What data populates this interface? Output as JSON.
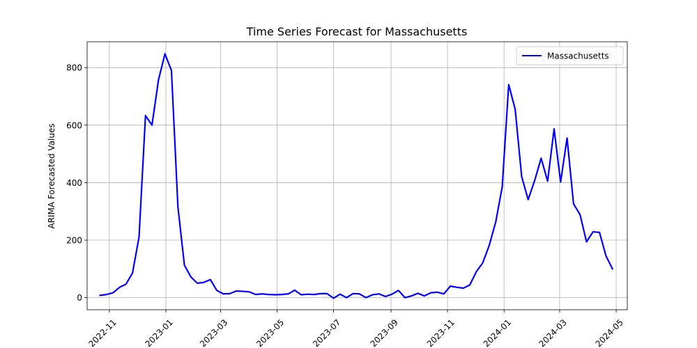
{
  "chart_data": {
    "type": "line",
    "title": "Time Series Forecast for Massachusetts",
    "xlabel": "",
    "ylabel": "ARIMA Forecasted Values",
    "xlim": [
      "2022-10-08",
      "2024-05-13"
    ],
    "ylim": [
      -42,
      890
    ],
    "x_ticks": [
      "2022-11-01",
      "2023-01-01",
      "2023-03-01",
      "2023-05-01",
      "2023-07-01",
      "2023-09-01",
      "2023-11-01",
      "2024-01-01",
      "2024-03-01",
      "2024-05-01"
    ],
    "x_tick_labels": [
      "2022-11",
      "2023-01",
      "2023-03",
      "2023-05",
      "2023-07",
      "2023-09",
      "2023-11",
      "2024-01",
      "2024-03",
      "2024-05"
    ],
    "y_ticks": [
      0,
      200,
      400,
      600,
      800
    ],
    "y_tick_labels": [
      "0",
      "200",
      "400",
      "600",
      "800"
    ],
    "grid": true,
    "legend_position": "upper right",
    "series": [
      {
        "name": "Massachusetts",
        "color": "#0000ff",
        "x": [
          "2022-10-22",
          "2022-10-29",
          "2022-11-05",
          "2022-11-12",
          "2022-11-19",
          "2022-11-26",
          "2022-12-03",
          "2022-12-10",
          "2022-12-17",
          "2022-12-24",
          "2022-12-31",
          "2023-01-07",
          "2023-01-14",
          "2023-01-21",
          "2023-01-28",
          "2023-02-04",
          "2023-02-11",
          "2023-02-18",
          "2023-02-25",
          "2023-03-04",
          "2023-03-11",
          "2023-03-18",
          "2023-03-25",
          "2023-04-01",
          "2023-04-08",
          "2023-04-15",
          "2023-04-22",
          "2023-04-29",
          "2023-05-06",
          "2023-05-13",
          "2023-05-20",
          "2023-05-27",
          "2023-06-03",
          "2023-06-10",
          "2023-06-17",
          "2023-06-24",
          "2023-07-01",
          "2023-07-08",
          "2023-07-15",
          "2023-07-22",
          "2023-07-29",
          "2023-08-05",
          "2023-08-12",
          "2023-08-19",
          "2023-08-26",
          "2023-09-02",
          "2023-09-09",
          "2023-09-16",
          "2023-09-23",
          "2023-09-30",
          "2023-10-07",
          "2023-10-14",
          "2023-10-21",
          "2023-10-28",
          "2023-11-04",
          "2023-11-11",
          "2023-11-18",
          "2023-11-25",
          "2023-12-02",
          "2023-12-09",
          "2023-12-16",
          "2023-12-23",
          "2023-12-30",
          "2024-01-06",
          "2024-01-13",
          "2024-01-20",
          "2024-01-27",
          "2024-02-03",
          "2024-02-10",
          "2024-02-17",
          "2024-02-24",
          "2024-03-02",
          "2024-03-09",
          "2024-03-16",
          "2024-03-23",
          "2024-03-30",
          "2024-04-06",
          "2024-04-13",
          "2024-04-20",
          "2024-04-27"
        ],
        "values": [
          8,
          11,
          17,
          36,
          47,
          86,
          210,
          633,
          600,
          757,
          848,
          790,
          316,
          113,
          72,
          50,
          53,
          63,
          25,
          13,
          14,
          23,
          22,
          20,
          11,
          13,
          11,
          10,
          11,
          13,
          26,
          10,
          12,
          11,
          14,
          14,
          -2,
          12,
          0,
          14,
          13,
          0,
          10,
          13,
          4,
          12,
          25,
          0,
          6,
          15,
          6,
          17,
          19,
          13,
          40,
          36,
          33,
          44,
          90,
          121,
          182,
          263,
          385,
          741,
          655,
          421,
          341,
          407,
          485,
          405,
          587,
          402,
          555,
          326,
          289,
          194,
          229,
          227,
          145,
          100
        ]
      }
    ]
  }
}
